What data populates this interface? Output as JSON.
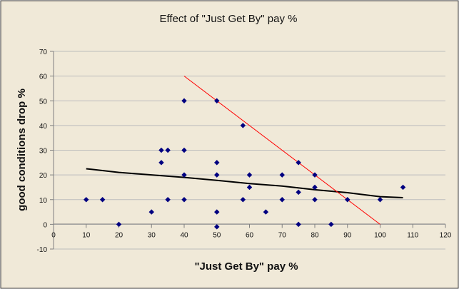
{
  "chart_data": {
    "type": "scatter",
    "title": "Effect of \"Just Get By\" pay %",
    "xlabel": "\"Just Get By\" pay %",
    "ylabel": "good conditions drop %",
    "xlim": [
      0,
      120
    ],
    "ylim": [
      -10,
      70
    ],
    "x_ticks": [
      0,
      10,
      20,
      30,
      40,
      50,
      60,
      70,
      80,
      90,
      100,
      110,
      120
    ],
    "y_ticks": [
      -10,
      0,
      10,
      20,
      30,
      40,
      50,
      60,
      70
    ],
    "grid": "horizontal",
    "legend": "none",
    "colors": {
      "background": "#f0e9d8",
      "points": "#000080",
      "trend_line": "#000000",
      "red_line": "#ff0000"
    },
    "series": [
      {
        "points": [
          [
            10,
            10
          ],
          [
            15,
            10
          ],
          [
            20,
            0
          ],
          [
            30,
            5
          ],
          [
            33,
            30
          ],
          [
            33,
            25
          ],
          [
            35,
            30
          ],
          [
            35,
            10
          ],
          [
            40,
            50
          ],
          [
            40,
            30
          ],
          [
            40,
            20
          ],
          [
            40,
            10
          ],
          [
            50,
            50
          ],
          [
            50,
            25
          ],
          [
            50,
            20
          ],
          [
            50,
            5
          ],
          [
            50,
            -1
          ],
          [
            58,
            40
          ],
          [
            58,
            10
          ],
          [
            60,
            20
          ],
          [
            60,
            15
          ],
          [
            65,
            5
          ],
          [
            70,
            20
          ],
          [
            70,
            10
          ],
          [
            75,
            25
          ],
          [
            75,
            13
          ],
          [
            75,
            0
          ],
          [
            80,
            20
          ],
          [
            80,
            15
          ],
          [
            80,
            10
          ],
          [
            85,
            0
          ],
          [
            90,
            10
          ],
          [
            100,
            10
          ],
          [
            107,
            15
          ]
        ]
      }
    ],
    "trend_line": [
      [
        10,
        22.5
      ],
      [
        20,
        21
      ],
      [
        30,
        20
      ],
      [
        40,
        19
      ],
      [
        50,
        17.8
      ],
      [
        60,
        16.5
      ],
      [
        70,
        15.5
      ],
      [
        80,
        14
      ],
      [
        90,
        12.8
      ],
      [
        100,
        11.2
      ],
      [
        107,
        10.8
      ]
    ],
    "red_line": [
      [
        40,
        60
      ],
      [
        100,
        0
      ]
    ]
  }
}
